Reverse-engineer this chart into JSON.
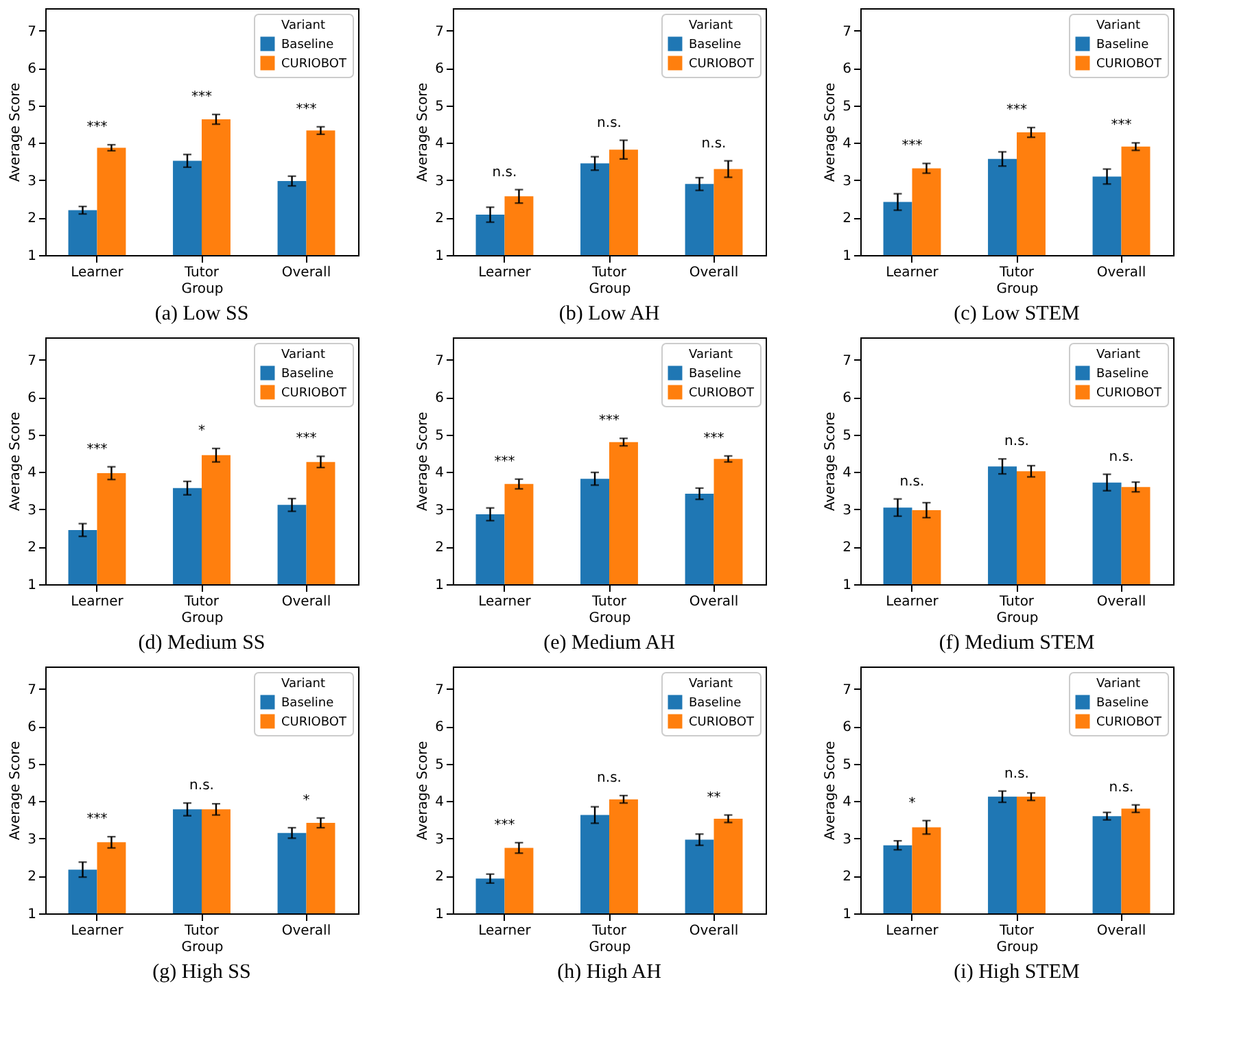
{
  "chart_data": [
    {
      "type": "bar",
      "title": "(a) Low SS",
      "xlabel": "Group",
      "ylabel": "Average Score",
      "legend_title": "Variant",
      "legend": "top right",
      "grid": false,
      "ylim": [
        1,
        7.6
      ],
      "yticks": [
        1,
        2,
        3,
        4,
        5,
        6,
        7
      ],
      "categories": [
        "Learner",
        "Tutor",
        "Overall"
      ],
      "series": [
        {
          "name": "Baseline",
          "color": "#1f77b4",
          "values": [
            2.2,
            3.52,
            2.98
          ],
          "errors": [
            0.1,
            0.17,
            0.13
          ]
        },
        {
          "name": "CURIOBOT",
          "color": "#ff7f0e",
          "values": [
            3.87,
            4.63,
            4.33
          ],
          "errors": [
            0.08,
            0.13,
            0.1
          ]
        }
      ],
      "annotations": [
        "***",
        "***",
        "***"
      ]
    },
    {
      "type": "bar",
      "title": "(b) Low AH",
      "xlabel": "Group",
      "ylabel": "Average Score",
      "legend_title": "Variant",
      "legend": "top right",
      "grid": false,
      "ylim": [
        1,
        7.6
      ],
      "yticks": [
        1,
        2,
        3,
        4,
        5,
        6,
        7
      ],
      "categories": [
        "Learner",
        "Tutor",
        "Overall"
      ],
      "series": [
        {
          "name": "Baseline",
          "color": "#1f77b4",
          "values": [
            2.08,
            3.45,
            2.9
          ],
          "errors": [
            0.2,
            0.18,
            0.17
          ]
        },
        {
          "name": "CURIOBOT",
          "color": "#ff7f0e",
          "values": [
            2.57,
            3.82,
            3.3
          ],
          "errors": [
            0.18,
            0.25,
            0.22
          ]
        }
      ],
      "annotations": [
        "n.s.",
        "n.s.",
        "n.s."
      ]
    },
    {
      "type": "bar",
      "title": "(c) Low STEM",
      "xlabel": "Group",
      "ylabel": "Average Score",
      "legend_title": "Variant",
      "legend": "top right",
      "grid": false,
      "ylim": [
        1,
        7.6
      ],
      "yticks": [
        1,
        2,
        3,
        4,
        5,
        6,
        7
      ],
      "categories": [
        "Learner",
        "Tutor",
        "Overall"
      ],
      "series": [
        {
          "name": "Baseline",
          "color": "#1f77b4",
          "values": [
            2.42,
            3.57,
            3.1
          ],
          "errors": [
            0.22,
            0.19,
            0.2
          ]
        },
        {
          "name": "CURIOBOT",
          "color": "#ff7f0e",
          "values": [
            3.32,
            4.28,
            3.9
          ],
          "errors": [
            0.13,
            0.13,
            0.1
          ]
        }
      ],
      "annotations": [
        "***",
        "***",
        "***"
      ]
    },
    {
      "type": "bar",
      "title": "(d) Medium SS",
      "xlabel": "Group",
      "ylabel": "Average Score",
      "legend_title": "Variant",
      "legend": "top right",
      "grid": false,
      "ylim": [
        1,
        7.6
      ],
      "yticks": [
        1,
        2,
        3,
        4,
        5,
        6,
        7
      ],
      "categories": [
        "Learner",
        "Tutor",
        "Overall"
      ],
      "series": [
        {
          "name": "Baseline",
          "color": "#1f77b4",
          "values": [
            2.45,
            3.57,
            3.12
          ],
          "errors": [
            0.17,
            0.18,
            0.17
          ]
        },
        {
          "name": "CURIOBOT",
          "color": "#ff7f0e",
          "values": [
            3.97,
            4.45,
            4.27
          ],
          "errors": [
            0.17,
            0.18,
            0.15
          ]
        }
      ],
      "annotations": [
        "***",
        "*",
        "***"
      ]
    },
    {
      "type": "bar",
      "title": "(e) Medium AH",
      "xlabel": "Group",
      "ylabel": "Average Score",
      "legend_title": "Variant",
      "legend": "top right",
      "grid": false,
      "ylim": [
        1,
        7.6
      ],
      "yticks": [
        1,
        2,
        3,
        4,
        5,
        6,
        7
      ],
      "categories": [
        "Learner",
        "Tutor",
        "Overall"
      ],
      "series": [
        {
          "name": "Baseline",
          "color": "#1f77b4",
          "values": [
            2.87,
            3.82,
            3.42
          ],
          "errors": [
            0.17,
            0.17,
            0.15
          ]
        },
        {
          "name": "CURIOBOT",
          "color": "#ff7f0e",
          "values": [
            3.68,
            4.8,
            4.35
          ],
          "errors": [
            0.13,
            0.1,
            0.08
          ]
        }
      ],
      "annotations": [
        "***",
        "***",
        "***"
      ]
    },
    {
      "type": "bar",
      "title": "(f) Medium STEM",
      "xlabel": "Group",
      "ylabel": "Average Score",
      "legend_title": "Variant",
      "legend": "top right",
      "grid": false,
      "ylim": [
        1,
        7.6
      ],
      "yticks": [
        1,
        2,
        3,
        4,
        5,
        6,
        7
      ],
      "categories": [
        "Learner",
        "Tutor",
        "Overall"
      ],
      "series": [
        {
          "name": "Baseline",
          "color": "#1f77b4",
          "values": [
            3.05,
            4.15,
            3.72
          ],
          "errors": [
            0.23,
            0.2,
            0.22
          ]
        },
        {
          "name": "CURIOBOT",
          "color": "#ff7f0e",
          "values": [
            2.98,
            4.02,
            3.6
          ],
          "errors": [
            0.2,
            0.15,
            0.13
          ]
        }
      ],
      "annotations": [
        "n.s.",
        "n.s.",
        "n.s."
      ]
    },
    {
      "type": "bar",
      "title": "(g) High SS",
      "xlabel": "Group",
      "ylabel": "Average Score",
      "legend_title": "Variant",
      "legend": "top right",
      "grid": false,
      "ylim": [
        1,
        7.6
      ],
      "yticks": [
        1,
        2,
        3,
        4,
        5,
        6,
        7
      ],
      "categories": [
        "Learner",
        "Tutor",
        "Overall"
      ],
      "series": [
        {
          "name": "Baseline",
          "color": "#1f77b4",
          "values": [
            2.17,
            3.78,
            3.15
          ],
          "errors": [
            0.2,
            0.17,
            0.14
          ]
        },
        {
          "name": "CURIOBOT",
          "color": "#ff7f0e",
          "values": [
            2.9,
            3.78,
            3.42
          ],
          "errors": [
            0.15,
            0.15,
            0.13
          ]
        }
      ],
      "annotations": [
        "***",
        "n.s.",
        "*"
      ]
    },
    {
      "type": "bar",
      "title": "(h) High AH",
      "xlabel": "Group",
      "ylabel": "Average Score",
      "legend_title": "Variant",
      "legend": "top right",
      "grid": false,
      "ylim": [
        1,
        7.6
      ],
      "yticks": [
        1,
        2,
        3,
        4,
        5,
        6,
        7
      ],
      "categories": [
        "Learner",
        "Tutor",
        "Overall"
      ],
      "series": [
        {
          "name": "Baseline",
          "color": "#1f77b4",
          "values": [
            1.93,
            3.63,
            2.97
          ],
          "errors": [
            0.12,
            0.22,
            0.15
          ]
        },
        {
          "name": "CURIOBOT",
          "color": "#ff7f0e",
          "values": [
            2.75,
            4.05,
            3.53
          ],
          "errors": [
            0.14,
            0.1,
            0.1
          ]
        }
      ],
      "annotations": [
        "***",
        "n.s.",
        "**"
      ]
    },
    {
      "type": "bar",
      "title": "(i) High STEM",
      "xlabel": "Group",
      "ylabel": "Average Score",
      "legend_title": "Variant",
      "legend": "top right",
      "grid": false,
      "ylim": [
        1,
        7.6
      ],
      "yticks": [
        1,
        2,
        3,
        4,
        5,
        6,
        7
      ],
      "categories": [
        "Learner",
        "Tutor",
        "Overall"
      ],
      "series": [
        {
          "name": "Baseline",
          "color": "#1f77b4",
          "values": [
            2.82,
            4.12,
            3.6
          ],
          "errors": [
            0.12,
            0.15,
            0.1
          ]
        },
        {
          "name": "CURIOBOT",
          "color": "#ff7f0e",
          "values": [
            3.3,
            4.12,
            3.8
          ],
          "errors": [
            0.18,
            0.1,
            0.1
          ]
        }
      ],
      "annotations": [
        "*",
        "n.s.",
        "n.s."
      ]
    }
  ]
}
